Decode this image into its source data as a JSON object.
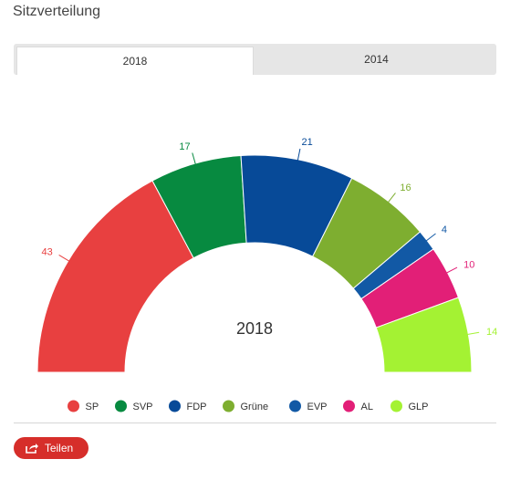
{
  "page_title": "Sitzverteilung",
  "tabs": [
    {
      "label": "2018",
      "active": true
    },
    {
      "label": "2014",
      "active": false
    }
  ],
  "share_button": {
    "label": "Teilen",
    "icon": "share-icon"
  },
  "colors": {
    "SP": "#e84040",
    "SVP": "#078a40",
    "FDP": "#074a98",
    "Grüne": "#7eae30",
    "EVP": "#1259a5",
    "AL": "#e21f77",
    "GLP": "#a4f233"
  },
  "chart_data": {
    "type": "pie",
    "variant": "parliament-semicircle",
    "center_label": "2018",
    "categories": [
      "SP",
      "SVP",
      "FDP",
      "Grüne",
      "EVP",
      "AL",
      "GLP"
    ],
    "values": [
      43,
      17,
      21,
      16,
      4,
      10,
      14
    ],
    "legend_position": "bottom"
  }
}
